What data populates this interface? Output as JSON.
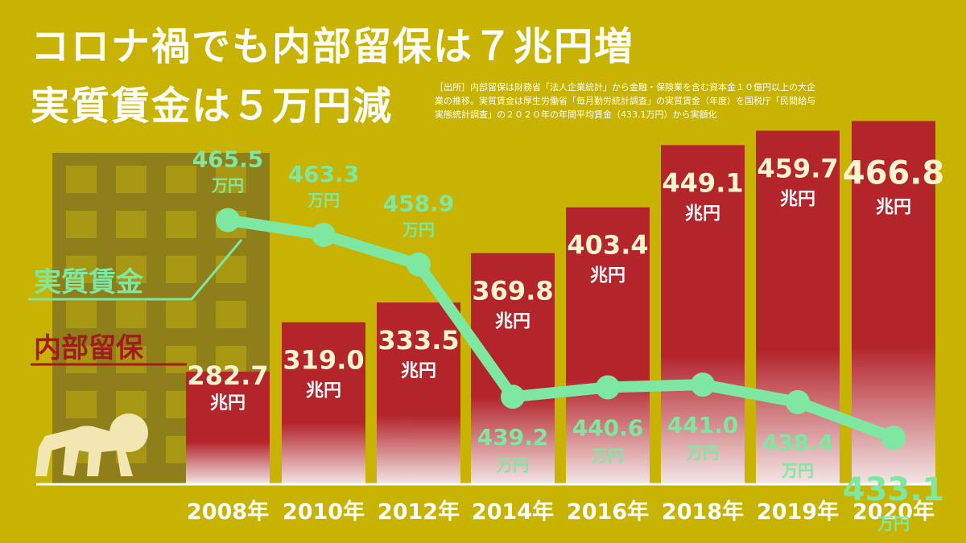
{
  "title_line1": "コロナ禍でも内部留保は７兆円増",
  "title_line2": "実質賃金は５万円減",
  "source_lines": [
    "［出所］内部留保は財務省「法人企業統計」から金融・保険業を含む資本金１０億円以上の大企",
    "業の推移。実質賃金は厚生労働省「毎月勤労統計調査」の実質賃金（年度）を国税庁「民間給与",
    "実態統計調査」の２０２０年の年間平均賃金（433.1万円）から実額化"
  ],
  "colors": {
    "background": "#c7b300",
    "bar": "#b3242b",
    "line": "#7ee8a2",
    "wage_label": "#7ee8a2",
    "reserve_label": "#a31b1b",
    "value_text": "#fff6cf"
  },
  "chart_data": {
    "type": "bar",
    "categories": [
      "2008年",
      "2010年",
      "2012年",
      "2014年",
      "2016年",
      "2018年",
      "2019年",
      "2020年"
    ],
    "series": [
      {
        "name": "内部留保",
        "type": "bar",
        "unit": "兆円",
        "values": [
          282.7,
          319.0,
          333.5,
          369.8,
          403.4,
          449.1,
          459.7,
          466.8
        ]
      },
      {
        "name": "実質賃金",
        "type": "line",
        "unit": "万円",
        "values": [
          465.5,
          463.3,
          458.9,
          439.2,
          440.6,
          441.0,
          438.4,
          433.1
        ]
      }
    ],
    "value_labels": {
      "bars": [
        "282.7",
        "319.0",
        "333.5",
        "369.8",
        "403.4",
        "449.1",
        "459.7",
        "466.8"
      ],
      "line": [
        "465.5",
        "463.3",
        "458.9",
        "439.2",
        "440.6",
        "441.0",
        "438.4",
        "433.1"
      ]
    },
    "legend": [
      "実質賃金",
      "内部留保"
    ]
  }
}
